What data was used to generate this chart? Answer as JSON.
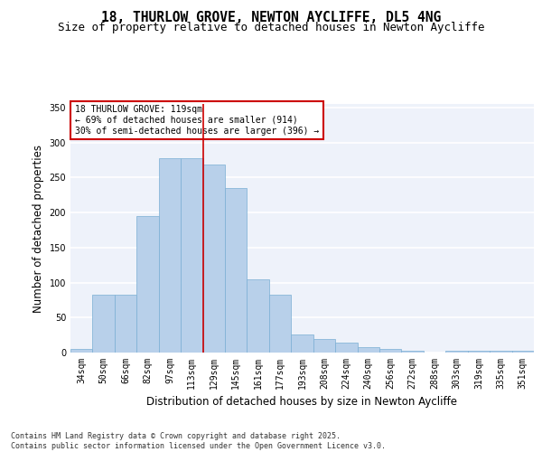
{
  "title1": "18, THURLOW GROVE, NEWTON AYCLIFFE, DL5 4NG",
  "title2": "Size of property relative to detached houses in Newton Aycliffe",
  "xlabel": "Distribution of detached houses by size in Newton Aycliffe",
  "ylabel": "Number of detached properties",
  "categories": [
    "34sqm",
    "50sqm",
    "66sqm",
    "82sqm",
    "97sqm",
    "113sqm",
    "129sqm",
    "145sqm",
    "161sqm",
    "177sqm",
    "193sqm",
    "208sqm",
    "224sqm",
    "240sqm",
    "256sqm",
    "272sqm",
    "288sqm",
    "303sqm",
    "319sqm",
    "335sqm",
    "351sqm"
  ],
  "values": [
    5,
    83,
    83,
    195,
    278,
    278,
    268,
    235,
    104,
    83,
    26,
    19,
    14,
    8,
    5,
    2,
    0,
    3,
    2,
    2,
    2
  ],
  "bar_color": "#b8d0ea",
  "bar_edge_color": "#7aafd4",
  "vline_pos": 5.5,
  "vline_color": "#cc0000",
  "annotation_text": "18 THURLOW GROVE: 119sqm\n← 69% of detached houses are smaller (914)\n30% of semi-detached houses are larger (396) →",
  "ylim": [
    0,
    355
  ],
  "yticks": [
    0,
    50,
    100,
    150,
    200,
    250,
    300,
    350
  ],
  "background_color": "#eef2fa",
  "grid_color": "#ffffff",
  "footer_text": "Contains HM Land Registry data © Crown copyright and database right 2025.\nContains public sector information licensed under the Open Government Licence v3.0.",
  "title_fontsize": 10.5,
  "subtitle_fontsize": 9,
  "tick_fontsize": 7,
  "ylabel_fontsize": 8.5,
  "xlabel_fontsize": 8.5,
  "footer_fontsize": 6,
  "ann_fontsize": 7
}
